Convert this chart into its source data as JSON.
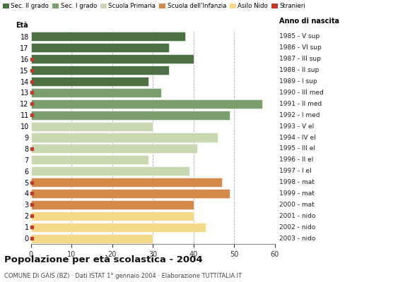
{
  "ages": [
    0,
    1,
    2,
    3,
    4,
    5,
    6,
    7,
    8,
    9,
    10,
    11,
    12,
    13,
    14,
    15,
    16,
    17,
    18
  ],
  "anni_nascita": [
    "2003 - nido",
    "2002 - nido",
    "2001 - nido",
    "2000 - mat",
    "1999 - mat",
    "1998 - mat",
    "1997 - I el",
    "1996 - II el",
    "1995 - III el",
    "1994 - IV el",
    "1993 - V el",
    "1992 - I med",
    "1991 - II med",
    "1990 - III med",
    "1989 - I sup",
    "1988 - II sup",
    "1987 - III sup",
    "1986 - VI sup",
    "1985 - V sup"
  ],
  "bar_values": [
    30,
    43,
    40,
    40,
    49,
    47,
    39,
    29,
    41,
    46,
    30,
    49,
    57,
    32,
    29,
    34,
    40,
    34,
    38
  ],
  "bar_colors": [
    "#f5d98a",
    "#f5d98a",
    "#f5d98a",
    "#d4894a",
    "#d4894a",
    "#d4894a",
    "#c8d8b0",
    "#c8d8b0",
    "#c8d8b0",
    "#c8d8b0",
    "#c8d8b0",
    "#7a9e6e",
    "#7a9e6e",
    "#7a9e6e",
    "#4a7043",
    "#4a7043",
    "#4a7043",
    "#4a7043",
    "#4a7043"
  ],
  "stranieri_squares": [
    0,
    1,
    2,
    3,
    4,
    5,
    8,
    11,
    12,
    13,
    14,
    15,
    16
  ],
  "legend_labels": [
    "Sec. II grado",
    "Sec. I grado",
    "Scuola Primaria",
    "Scuola dell'Infanzia",
    "Asilo Nido",
    "Stranieri"
  ],
  "legend_colors": [
    "#4a7043",
    "#7a9e6e",
    "#c8d8b0",
    "#d4894a",
    "#f5d98a",
    "#c0392b"
  ],
  "title": "Popolazione per età scolastica - 2004",
  "subtitle": "COMUNE DI GAIS (BZ) · Dati ISTAT 1° gennaio 2004 · Elaborazione TUTTITALIA.IT",
  "xlabel_eta": "Età",
  "xlabel_anno": "Anno di nascita",
  "xlim": [
    0,
    60
  ],
  "xticks": [
    0,
    10,
    20,
    30,
    40,
    50,
    60
  ],
  "grid_color": "#aaaaaa",
  "background_color": "#ffffff",
  "bar_height": 0.82
}
